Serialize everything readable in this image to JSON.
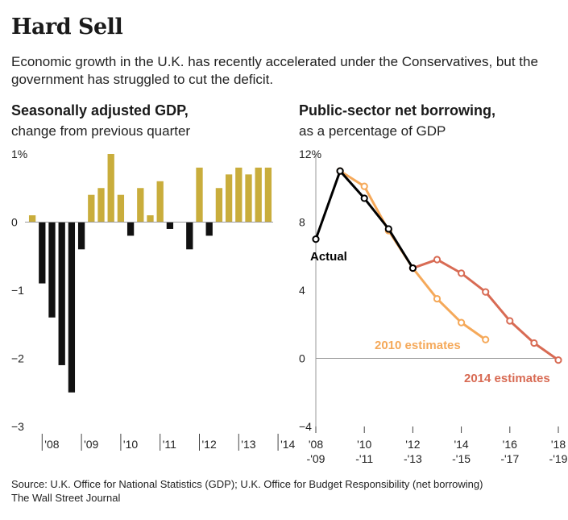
{
  "header": {
    "title": "Hard Sell",
    "subtitle": "Economic growth in the U.K. has recently accelerated under the Conservatives, but the government has struggled to cut the deficit."
  },
  "footer": {
    "source": "Source: U.K. Office for National Statistics (GDP); U.K. Office for Budget Responsibility (net borrowing)",
    "publisher": "The Wall Street Journal"
  },
  "colors": {
    "positive": "#c9ad3c",
    "negative": "#111111",
    "actual": "#000000",
    "est2010": "#f5a95a",
    "est2014": "#d86b54",
    "axis": "#999999"
  },
  "chart_data": [
    {
      "type": "bar",
      "title": "Seasonally adjusted GDP,",
      "subtitle": "change from previous quarter",
      "ylim": [
        -3,
        1
      ],
      "yticks": [
        "1%",
        "0",
        "−1",
        "−2",
        "−3"
      ],
      "ytick_values": [
        1,
        0,
        -1,
        -2,
        -3
      ],
      "xtick_labels": [
        "'08",
        "'09",
        "'10",
        "'11",
        "'12",
        "'13",
        "'14"
      ],
      "values": [
        0.1,
        -0.9,
        -1.4,
        -2.1,
        -2.5,
        -0.4,
        0.4,
        0.5,
        1.0,
        0.4,
        -0.2,
        0.5,
        0.1,
        0.6,
        -0.1,
        0.0,
        -0.4,
        0.8,
        -0.2,
        0.5,
        0.7,
        0.8,
        0.7,
        0.8,
        0.8
      ]
    },
    {
      "type": "line",
      "title": "Public-sector net borrowing,",
      "subtitle": "as a percentage of GDP",
      "ylim": [
        -4,
        12
      ],
      "yticks": [
        "12%",
        "8",
        "4",
        "0",
        "−4"
      ],
      "ytick_values": [
        12,
        8,
        4,
        0,
        -4
      ],
      "xtick_labels": [
        {
          "top": "'08",
          "bottom": "-'09"
        },
        {
          "top": "'10",
          "bottom": "-'11"
        },
        {
          "top": "'12",
          "bottom": "-'13"
        },
        {
          "top": "'14",
          "bottom": "-'15"
        },
        {
          "top": "'16",
          "bottom": "-'17"
        },
        {
          "top": "'18",
          "bottom": "-'19"
        }
      ],
      "series": [
        {
          "name": "2010 estimates",
          "x": [
            1,
            2,
            3,
            4,
            5,
            6,
            7
          ],
          "y": [
            11.0,
            10.1,
            7.5,
            5.3,
            3.5,
            2.1,
            1.1
          ]
        },
        {
          "name": "2014 estimates",
          "x": [
            4,
            5,
            6,
            7,
            8,
            9,
            10
          ],
          "y": [
            5.3,
            5.8,
            5.0,
            3.9,
            2.2,
            0.9,
            -0.1
          ]
        },
        {
          "name": "Actual",
          "x": [
            0,
            1,
            2,
            3,
            4
          ],
          "y": [
            7.0,
            11.0,
            9.4,
            7.6,
            5.3
          ]
        }
      ]
    }
  ]
}
